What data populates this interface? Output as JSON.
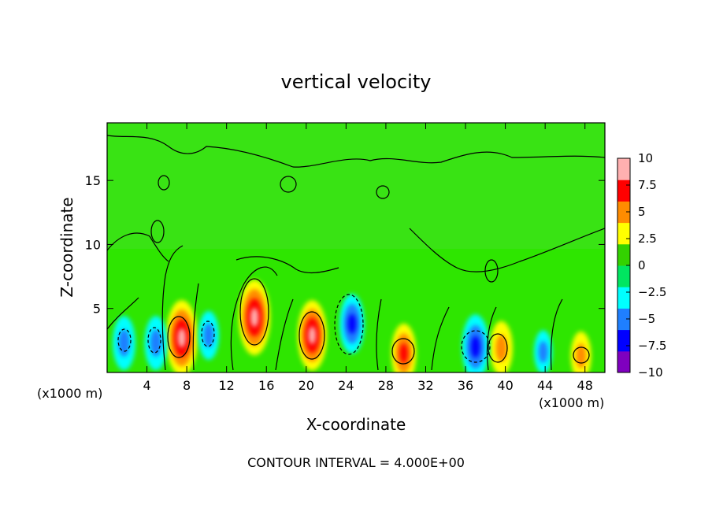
{
  "chart_data": {
    "type": "heatmap",
    "title": "vertical velocity",
    "xlabel": "X-coordinate",
    "ylabel": "Z-coordinate",
    "x_unit_left": "(x1000 m)",
    "x_unit_right": "(x1000 m)",
    "xlim": [
      0,
      50
    ],
    "ylim": [
      0,
      19.5
    ],
    "x_ticks": [
      "4",
      "8",
      "12",
      "16",
      "20",
      "24",
      "28",
      "32",
      "36",
      "40",
      "44",
      "48"
    ],
    "x_tick_values": [
      4,
      8,
      12,
      16,
      20,
      24,
      28,
      32,
      36,
      40,
      44,
      48
    ],
    "y_ticks": [
      "5",
      "10",
      "15"
    ],
    "y_tick_values": [
      5,
      10,
      15
    ],
    "colorbar": {
      "min": -10,
      "max": 10,
      "labels": [
        "10",
        "7.5",
        "5",
        "2.5",
        "0",
        "−2.5",
        "−5",
        "−7.5",
        "−10"
      ],
      "label_values": [
        10,
        7.5,
        5,
        2.5,
        0,
        -2.5,
        -5,
        -7.5,
        -10
      ],
      "colors": [
        "#7f00bf",
        "#0000ff",
        "#1f7fff",
        "#00ffff",
        "#00e660",
        "#33d200",
        "#ffff00",
        "#ff8c00",
        "#ff0000",
        "#ffb0b0"
      ]
    },
    "cells": [
      {
        "x": 7.5,
        "z": 2.7,
        "w": 10,
        "note": "updraft core"
      },
      {
        "x": 14.8,
        "z": 4.3,
        "w": 10,
        "note": "updraft core"
      },
      {
        "x": 20.6,
        "z": 2.9,
        "w": 9,
        "note": "updraft core"
      },
      {
        "x": 29.8,
        "z": 1.5,
        "w": 7,
        "note": "updraft"
      },
      {
        "x": 39.6,
        "z": 1.9,
        "w": 6,
        "note": "updraft"
      },
      {
        "x": 47.6,
        "z": 1.3,
        "w": 5,
        "note": "updraft"
      },
      {
        "x": 1.7,
        "z": 2.3,
        "w": -6,
        "note": "downdraft"
      },
      {
        "x": 4.9,
        "z": 2.3,
        "w": -6,
        "note": "downdraft"
      },
      {
        "x": 10.2,
        "z": 2.9,
        "w": -5,
        "note": "downdraft"
      },
      {
        "x": 24.6,
        "z": 3.8,
        "w": -7,
        "note": "downdraft"
      },
      {
        "x": 37.0,
        "z": 2.0,
        "w": -8,
        "note": "downdraft"
      },
      {
        "x": 43.8,
        "z": 1.6,
        "w": -4,
        "note": "downdraft"
      }
    ],
    "contour_interval_text": "CONTOUR INTERVAL = 4.000E+00"
  }
}
